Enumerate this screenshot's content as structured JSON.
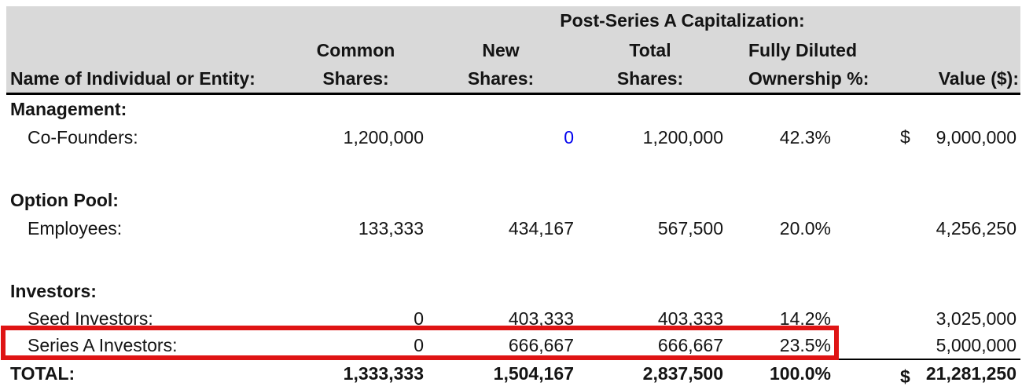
{
  "title": "Post-Series A Capitalization:",
  "header": {
    "name_label": "Name of Individual or Entity:",
    "common": {
      "line1": "Common",
      "line2": "Shares:"
    },
    "new": {
      "line1": "New",
      "line2": "Shares:"
    },
    "total": {
      "line1": "Total",
      "line2": "Shares:"
    },
    "fully_diluted": {
      "line1": "Fully Diluted",
      "line2": "Ownership %:"
    },
    "value_label": "Value ($):"
  },
  "rows": [
    {
      "type": "section",
      "name": "Management:"
    },
    {
      "type": "data",
      "name": "Co-Founders:",
      "common": "1,200,000",
      "new": "0",
      "new_blue": true,
      "total": "1,200,000",
      "pct": "42.3%",
      "dollar": "$",
      "value": "9,000,000"
    },
    {
      "type": "spacer"
    },
    {
      "type": "section",
      "name": "Option Pool:"
    },
    {
      "type": "data",
      "name": "Employees:",
      "common": "133,333",
      "new": "434,167",
      "total": "567,500",
      "pct": "20.0%",
      "value": "4,256,250"
    },
    {
      "type": "spacer"
    },
    {
      "type": "section",
      "name": "Investors:"
    },
    {
      "type": "data",
      "name": "Seed Investors:",
      "common": "0",
      "new": "403,333",
      "total": "403,333",
      "pct": "14.2%",
      "value": "3,025,000"
    },
    {
      "type": "data",
      "name": "Series A Investors:",
      "common": "0",
      "new": "666,667",
      "total": "666,667",
      "pct": "23.5%",
      "value": "5,000,000",
      "highlighted": true
    },
    {
      "type": "total",
      "name": "TOTAL:",
      "common": "1,333,333",
      "new": "1,504,167",
      "total": "2,837,500",
      "pct": "100.0%",
      "dollar": "$",
      "value": "21,281,250"
    }
  ],
  "colors": {
    "header_background": "#d9d9d9",
    "highlight_border": "#df1414",
    "input_value_blue": "#0000ee",
    "text": "#141414"
  }
}
